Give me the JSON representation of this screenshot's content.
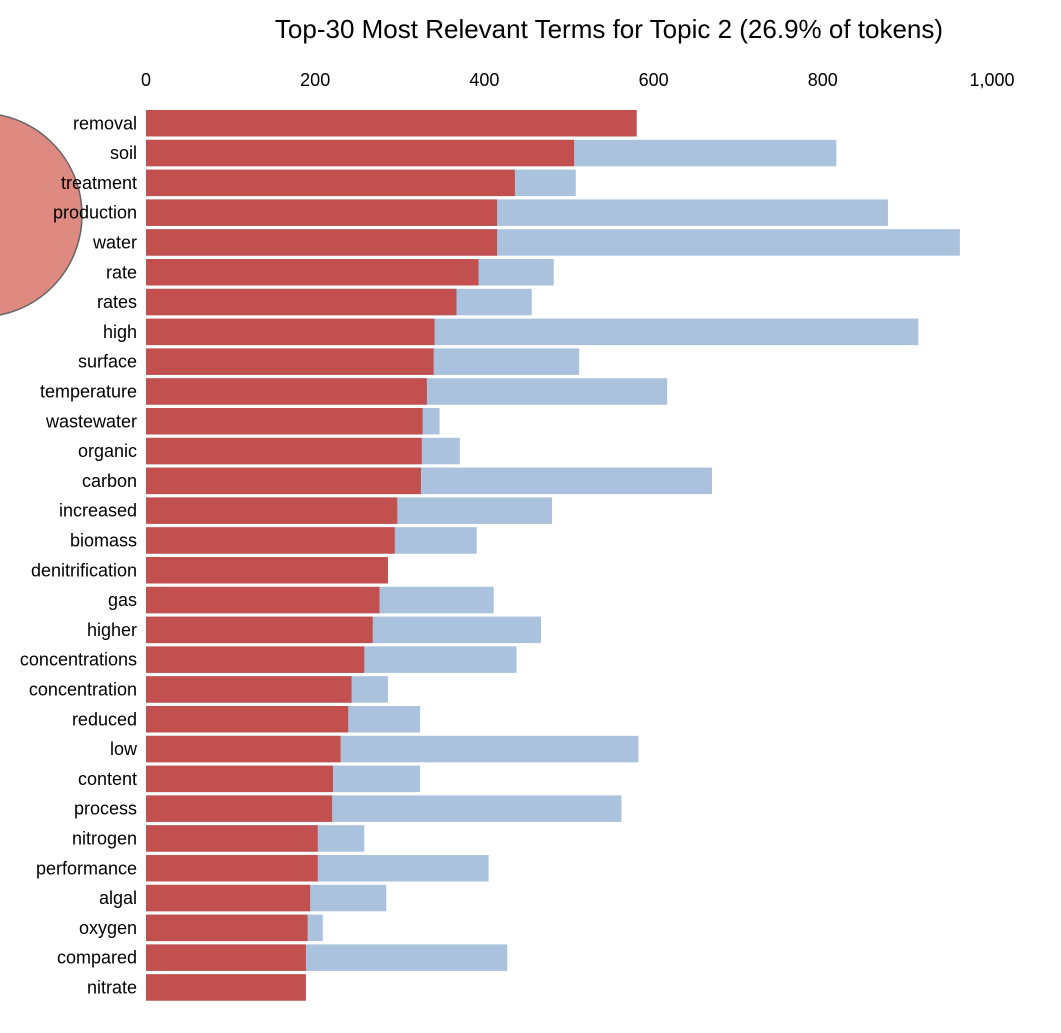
{
  "chart_data": {
    "type": "bar",
    "orientation": "horizontal",
    "title": "Top-30 Most Relevant Terms for Topic 2 (26.9% of tokens)",
    "xlim": [
      0,
      1000
    ],
    "x_ticks": [
      "0",
      "200",
      "400",
      "600",
      "800",
      "1,000"
    ],
    "x_tick_values": [
      0,
      200,
      400,
      600,
      800,
      1000
    ],
    "x_axis_position": "top",
    "grid": false,
    "legend": "none",
    "categories": [
      "removal",
      "soil",
      "treatment",
      "production",
      "water",
      "rate",
      "rates",
      "high",
      "surface",
      "temperature",
      "wastewater",
      "organic",
      "carbon",
      "increased",
      "biomass",
      "denitrification",
      "gas",
      "higher",
      "concentrations",
      "concentration",
      "reduced",
      "low",
      "content",
      "process",
      "nitrogen",
      "performance",
      "algal",
      "oxygen",
      "compared",
      "nitrate"
    ],
    "series": [
      {
        "color": "#c1504f",
        "values": [
          580,
          506,
          436,
          415,
          415,
          393,
          367,
          341,
          340,
          332,
          327,
          326,
          325,
          297,
          294,
          286,
          276,
          268,
          258,
          243,
          239,
          230,
          221,
          220,
          203,
          203,
          194,
          191,
          189,
          189
        ]
      },
      {
        "color": "#aac2dd",
        "values": [
          580,
          816,
          508,
          877,
          962,
          482,
          456,
          913,
          512,
          616,
          347,
          371,
          669,
          480,
          391,
          286,
          411,
          467,
          438,
          286,
          324,
          582,
          324,
          562,
          258,
          405,
          284,
          209,
          427,
          189
        ]
      }
    ]
  },
  "decor": {
    "circle_color": "#de8a80",
    "circle_stroke": "#666666"
  }
}
